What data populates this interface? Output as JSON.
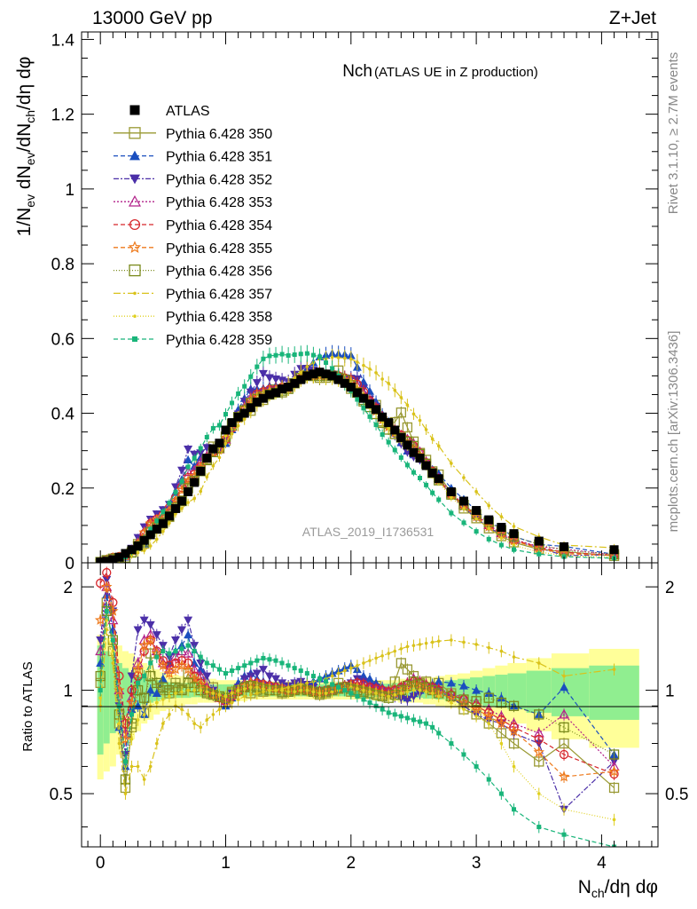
{
  "header": {
    "energy": "13000 GeV pp",
    "process": "Z+Jet"
  },
  "plot_title": {
    "main": "Nch",
    "sub": "(ATLAS UE in Z production)"
  },
  "watermark": "ATLAS_2019_I1736531",
  "side_text": {
    "rivet": "Rivet 3.1.10, ≥ 2.7M events",
    "mcplots": "mcplots.cern.ch [arXiv:1306.3436]"
  },
  "axes": {
    "ylabel_main": "1/N_ev dN_ev/dN_ch/dη dφ",
    "ylabel_ratio": "Ratio to ATLAS",
    "xlabel": "N_ch/dη dφ",
    "main_ticks": [
      "0",
      "0.2",
      "0.4",
      "0.6",
      "0.8",
      "1",
      "1.2",
      "1.4"
    ],
    "ratio_ticks": [
      "0.5",
      "1",
      "2"
    ],
    "x_ticks": [
      "0",
      "1",
      "2",
      "3",
      "4"
    ]
  },
  "chart_data": {
    "type": "scatter",
    "title": "Nch (ATLAS UE in Z production)",
    "xlabel": "N_ch/dη dφ",
    "ylabel": "1/N_ev dN_ev/dN_ch/dη dφ",
    "xlim": [
      -0.15,
      4.45
    ],
    "ylim": [
      0,
      1.42
    ],
    "ratio_ylim": [
      0.35,
      2.35
    ],
    "legend_position": "top-left",
    "x": [
      0.0,
      0.05,
      0.1,
      0.15,
      0.2,
      0.25,
      0.3,
      0.35,
      0.4,
      0.45,
      0.5,
      0.55,
      0.6,
      0.65,
      0.7,
      0.75,
      0.8,
      0.85,
      0.9,
      0.95,
      1.0,
      1.05,
      1.1,
      1.15,
      1.2,
      1.25,
      1.3,
      1.35,
      1.4,
      1.45,
      1.5,
      1.55,
      1.6,
      1.65,
      1.7,
      1.75,
      1.8,
      1.85,
      1.9,
      1.95,
      2.0,
      2.05,
      2.1,
      2.15,
      2.2,
      2.25,
      2.3,
      2.35,
      2.4,
      2.45,
      2.5,
      2.55,
      2.6,
      2.65,
      2.7,
      2.8,
      2.9,
      3.0,
      3.1,
      3.2,
      3.3,
      3.5,
      3.7,
      4.1
    ],
    "atlas": [
      0.002,
      0.004,
      0.008,
      0.015,
      0.025,
      0.035,
      0.045,
      0.06,
      0.075,
      0.09,
      0.105,
      0.125,
      0.145,
      0.165,
      0.19,
      0.215,
      0.245,
      0.28,
      0.305,
      0.32,
      0.355,
      0.375,
      0.39,
      0.4,
      0.415,
      0.43,
      0.44,
      0.45,
      0.455,
      0.465,
      0.47,
      0.48,
      0.49,
      0.5,
      0.505,
      0.51,
      0.505,
      0.5,
      0.49,
      0.48,
      0.47,
      0.455,
      0.44,
      0.425,
      0.41,
      0.39,
      0.375,
      0.355,
      0.335,
      0.315,
      0.295,
      0.28,
      0.26,
      0.24,
      0.225,
      0.19,
      0.165,
      0.14,
      0.115,
      0.095,
      0.078,
      0.058,
      0.043,
      0.035
    ],
    "band_inner": [
      0.35,
      0.3,
      0.25,
      0.2,
      0.16,
      0.13,
      0.11,
      0.09,
      0.08,
      0.07,
      0.06,
      0.055,
      0.05,
      0.05,
      0.05,
      0.045,
      0.045,
      0.045,
      0.04,
      0.04,
      0.04,
      0.04,
      0.04,
      0.04,
      0.04,
      0.04,
      0.04,
      0.04,
      0.04,
      0.04,
      0.04,
      0.04,
      0.04,
      0.04,
      0.04,
      0.04,
      0.04,
      0.04,
      0.04,
      0.04,
      0.04,
      0.04,
      0.04,
      0.04,
      0.045,
      0.045,
      0.045,
      0.05,
      0.05,
      0.05,
      0.05,
      0.05,
      0.055,
      0.055,
      0.06,
      0.07,
      0.08,
      0.09,
      0.1,
      0.11,
      0.12,
      0.14,
      0.16,
      0.18
    ],
    "band_outer": [
      0.45,
      0.42,
      0.4,
      0.35,
      0.3,
      0.28,
      0.24,
      0.2,
      0.18,
      0.15,
      0.13,
      0.12,
      0.11,
      0.1,
      0.09,
      0.09,
      0.08,
      0.08,
      0.08,
      0.07,
      0.07,
      0.07,
      0.07,
      0.07,
      0.06,
      0.06,
      0.06,
      0.06,
      0.06,
      0.06,
      0.06,
      0.06,
      0.06,
      0.06,
      0.06,
      0.06,
      0.06,
      0.06,
      0.06,
      0.06,
      0.06,
      0.06,
      0.06,
      0.06,
      0.07,
      0.07,
      0.07,
      0.07,
      0.08,
      0.08,
      0.08,
      0.08,
      0.09,
      0.09,
      0.1,
      0.11,
      0.12,
      0.14,
      0.16,
      0.18,
      0.2,
      0.24,
      0.28,
      0.32
    ],
    "series": [
      {
        "name": "Pythia 6.428 350",
        "color": "#999933",
        "marker": "square-open",
        "dash": "",
        "ratio": [
          1.05,
          1.8,
          1.3,
          0.8,
          0.52,
          0.78,
          1.12,
          0.86,
          1.28,
          1.01,
          1.0,
          0.98,
          1.05,
          1.01,
          1.12,
          1.05,
          1.08,
          0.99,
          1.02,
          0.96,
          0.92,
          0.99,
          1.0,
          1.02,
          0.98,
          1.0,
          0.99,
          1.0,
          1.02,
          0.98,
          0.99,
          1.0,
          1.02,
          1.0,
          0.99,
          0.97,
          0.98,
          1.0,
          1.05,
          1.02,
          0.99,
          1.0,
          0.98,
          1.0,
          1.03,
          0.97,
          0.99,
          1.06,
          1.2,
          1.15,
          1.1,
          1.05,
          1.06,
          1.02,
          1.05,
          0.98,
          0.88,
          0.85,
          0.8,
          0.75,
          0.7,
          0.62,
          0.7,
          0.52
        ]
      },
      {
        "name": "Pythia 6.428 351",
        "color": "#1a4fbf",
        "marker": "triangle-up",
        "dash": "5,3",
        "ratio": [
          1.2,
          1.9,
          1.5,
          0.78,
          0.6,
          0.88,
          0.9,
          0.85,
          1.0,
          0.98,
          1.08,
          1.2,
          1.3,
          1.35,
          1.45,
          1.2,
          1.15,
          1.0,
          0.98,
          0.95,
          0.9,
          0.95,
          1.05,
          1.1,
          1.12,
          1.08,
          1.06,
          1.05,
          1.04,
          1.02,
          1.0,
          1.02,
          1.03,
          1.04,
          1.06,
          1.08,
          1.1,
          1.12,
          1.14,
          1.16,
          1.18,
          1.15,
          1.1,
          1.08,
          1.05,
          1.02,
          1.0,
          0.98,
          0.96,
          0.95,
          0.98,
          1.0,
          1.02,
          1.04,
          1.06,
          1.05,
          1.03,
          1.0,
          0.98,
          0.95,
          0.9,
          0.85,
          1.02,
          0.65
        ]
      },
      {
        "name": "Pythia 6.428 352",
        "color": "#4b2fa8",
        "marker": "triangle-down",
        "dash": "6,2,2,2",
        "ratio": [
          1.4,
          2.1,
          1.7,
          0.9,
          0.65,
          1.1,
          1.5,
          1.6,
          1.55,
          1.45,
          1.35,
          1.25,
          1.4,
          1.5,
          1.6,
          1.35,
          1.2,
          1.1,
          1.0,
          0.95,
          0.92,
          0.98,
          1.02,
          1.08,
          1.1,
          1.12,
          1.15,
          1.1,
          1.08,
          1.05,
          1.03,
          1.05,
          1.06,
          1.04,
          1.02,
          1.0,
          0.99,
          1.01,
          1.02,
          1.03,
          1.05,
          1.08,
          1.06,
          1.03,
          1.02,
          1.0,
          0.98,
          0.96,
          0.95,
          0.94,
          0.96,
          0.98,
          1.0,
          1.02,
          1.0,
          0.95,
          0.9,
          0.85,
          0.82,
          0.8,
          0.75,
          0.7,
          0.45,
          0.62
        ]
      },
      {
        "name": "Pythia 6.428 353",
        "color": "#b2228a",
        "marker": "triangle-open",
        "dash": "2,2",
        "ratio": [
          1.3,
          2.0,
          1.6,
          1.0,
          0.75,
          0.95,
          1.2,
          1.4,
          1.45,
          1.3,
          1.2,
          1.15,
          1.25,
          1.3,
          1.28,
          1.15,
          1.1,
          1.02,
          0.98,
          0.95,
          0.93,
          0.97,
          1.0,
          1.04,
          1.06,
          1.05,
          1.04,
          1.03,
          1.02,
          1.01,
          1.0,
          1.01,
          1.02,
          1.01,
          1.0,
          0.99,
          0.99,
          1.0,
          1.01,
          1.02,
          1.03,
          1.04,
          1.03,
          1.02,
          1.01,
          1.0,
          0.99,
          1.0,
          1.02,
          1.05,
          1.08,
          1.06,
          1.04,
          1.02,
          1.01,
          0.98,
          0.95,
          0.92,
          0.88,
          0.84,
          0.8,
          0.75,
          0.85,
          0.6
        ]
      },
      {
        "name": "Pythia 6.428 354",
        "color": "#d6262b",
        "marker": "circle-open",
        "dash": "5,3",
        "ratio": [
          2.05,
          2.2,
          1.8,
          1.1,
          0.8,
          1.0,
          1.1,
          1.3,
          1.4,
          1.3,
          1.22,
          1.18,
          1.2,
          1.22,
          1.2,
          1.1,
          1.05,
          1.0,
          0.97,
          0.95,
          0.93,
          0.96,
          0.99,
          1.02,
          1.04,
          1.05,
          1.04,
          1.03,
          1.02,
          1.01,
          1.0,
          1.0,
          1.01,
          1.0,
          0.99,
          0.99,
          1.0,
          1.01,
          1.02,
          1.03,
          1.04,
          1.05,
          1.04,
          1.02,
          1.01,
          1.0,
          0.99,
          1.0,
          1.02,
          1.04,
          1.06,
          1.05,
          1.03,
          1.02,
          1.0,
          0.97,
          0.94,
          0.9,
          0.86,
          0.82,
          0.78,
          0.72,
          0.65,
          0.57
        ]
      },
      {
        "name": "Pythia 6.428 355",
        "color": "#ee7a1c",
        "marker": "star-open",
        "dash": "5,3",
        "ratio": [
          1.6,
          2.0,
          1.7,
          1.0,
          0.72,
          0.92,
          1.15,
          1.35,
          1.4,
          1.28,
          1.18,
          1.12,
          1.15,
          1.18,
          1.15,
          1.08,
          1.04,
          1.0,
          0.97,
          0.95,
          0.94,
          0.97,
          1.0,
          1.03,
          1.05,
          1.04,
          1.03,
          1.02,
          1.01,
          1.0,
          0.99,
          1.0,
          1.01,
          1.0,
          0.99,
          0.98,
          0.99,
          1.0,
          1.01,
          1.02,
          1.03,
          1.02,
          1.01,
          1.0,
          0.99,
          0.98,
          0.97,
          0.98,
          1.0,
          1.02,
          1.04,
          1.03,
          1.02,
          1.0,
          0.98,
          0.95,
          0.92,
          0.88,
          0.84,
          0.8,
          0.76,
          0.66,
          0.56,
          0.58
        ]
      },
      {
        "name": "Pythia 6.428 356",
        "color": "#7a8a1c",
        "marker": "square-open",
        "dash": "1,2",
        "ratio": [
          1.1,
          1.7,
          1.4,
          0.85,
          0.55,
          0.8,
          1.0,
          0.95,
          1.1,
          1.05,
          1.02,
          1.0,
          1.02,
          1.0,
          1.05,
          1.02,
          1.0,
          0.98,
          0.97,
          0.96,
          0.95,
          0.98,
          1.0,
          1.02,
          1.03,
          1.02,
          1.01,
          1.0,
          1.0,
          0.99,
          0.99,
          1.0,
          1.01,
          1.0,
          0.99,
          0.98,
          0.99,
          1.0,
          1.01,
          1.02,
          1.01,
          1.0,
          0.99,
          0.98,
          0.97,
          0.96,
          0.95,
          0.97,
          1.0,
          1.03,
          1.06,
          1.04,
          1.02,
          1.0,
          0.98,
          0.96,
          0.94,
          0.93,
          0.95,
          0.92,
          0.9,
          0.85,
          0.78,
          0.65
        ]
      },
      {
        "name": "Pythia 6.428 357",
        "color": "#d9c21a",
        "marker": "dot",
        "dash": "8,3,2,3",
        "ratio": [
          0.9,
          1.5,
          1.2,
          0.7,
          0.5,
          0.6,
          0.6,
          0.55,
          0.6,
          0.7,
          0.8,
          0.85,
          0.9,
          0.88,
          0.85,
          0.8,
          0.78,
          0.82,
          0.85,
          0.88,
          0.9,
          0.92,
          0.94,
          0.96,
          0.97,
          0.98,
          0.99,
          1.0,
          1.0,
          1.01,
          1.02,
          1.03,
          1.04,
          1.05,
          1.06,
          1.07,
          1.08,
          1.1,
          1.12,
          1.14,
          1.16,
          1.18,
          1.2,
          1.22,
          1.24,
          1.26,
          1.28,
          1.3,
          1.32,
          1.34,
          1.35,
          1.36,
          1.37,
          1.38,
          1.39,
          1.4,
          1.38,
          1.36,
          1.33,
          1.3,
          1.25,
          1.2,
          1.1,
          1.15
        ]
      },
      {
        "name": "Pythia 6.428 358",
        "color": "#e0d020",
        "marker": "dot",
        "dash": "1,2",
        "ratio": [
          0.95,
          1.6,
          1.3,
          0.8,
          0.6,
          0.72,
          0.82,
          0.85,
          0.9,
          0.92,
          0.94,
          0.96,
          0.98,
          0.99,
          1.0,
          1.0,
          1.0,
          0.99,
          0.98,
          0.97,
          0.96,
          0.98,
          1.0,
          1.01,
          1.02,
          1.02,
          1.01,
          1.0,
          1.0,
          1.0,
          0.99,
          0.99,
          1.0,
          1.0,
          0.99,
          0.98,
          0.98,
          0.99,
          1.0,
          1.01,
          1.02,
          1.01,
          1.0,
          0.99,
          0.98,
          0.97,
          0.96,
          0.97,
          0.98,
          0.99,
          1.0,
          1.0,
          0.99,
          0.98,
          0.96,
          0.92,
          0.88,
          0.84,
          0.8,
          0.7,
          0.6,
          0.5,
          0.45,
          0.42
        ]
      },
      {
        "name": "Pythia 6.428 359",
        "color": "#19b57a",
        "marker": "square-solid",
        "dash": "5,3",
        "ratio": [
          1.0,
          1.7,
          1.4,
          0.9,
          0.62,
          0.85,
          1.05,
          1.1,
          1.2,
          1.25,
          1.3,
          1.28,
          1.3,
          1.32,
          1.35,
          1.3,
          1.25,
          1.2,
          1.18,
          1.15,
          1.12,
          1.14,
          1.16,
          1.18,
          1.2,
          1.22,
          1.24,
          1.23,
          1.22,
          1.2,
          1.18,
          1.16,
          1.14,
          1.12,
          1.1,
          1.08,
          1.06,
          1.04,
          1.02,
          1.0,
          0.98,
          0.96,
          0.94,
          0.92,
          0.9,
          0.88,
          0.86,
          0.85,
          0.84,
          0.83,
          0.82,
          0.81,
          0.8,
          0.78,
          0.75,
          0.7,
          0.65,
          0.6,
          0.55,
          0.5,
          0.45,
          0.4,
          0.38,
          0.35
        ]
      }
    ]
  }
}
